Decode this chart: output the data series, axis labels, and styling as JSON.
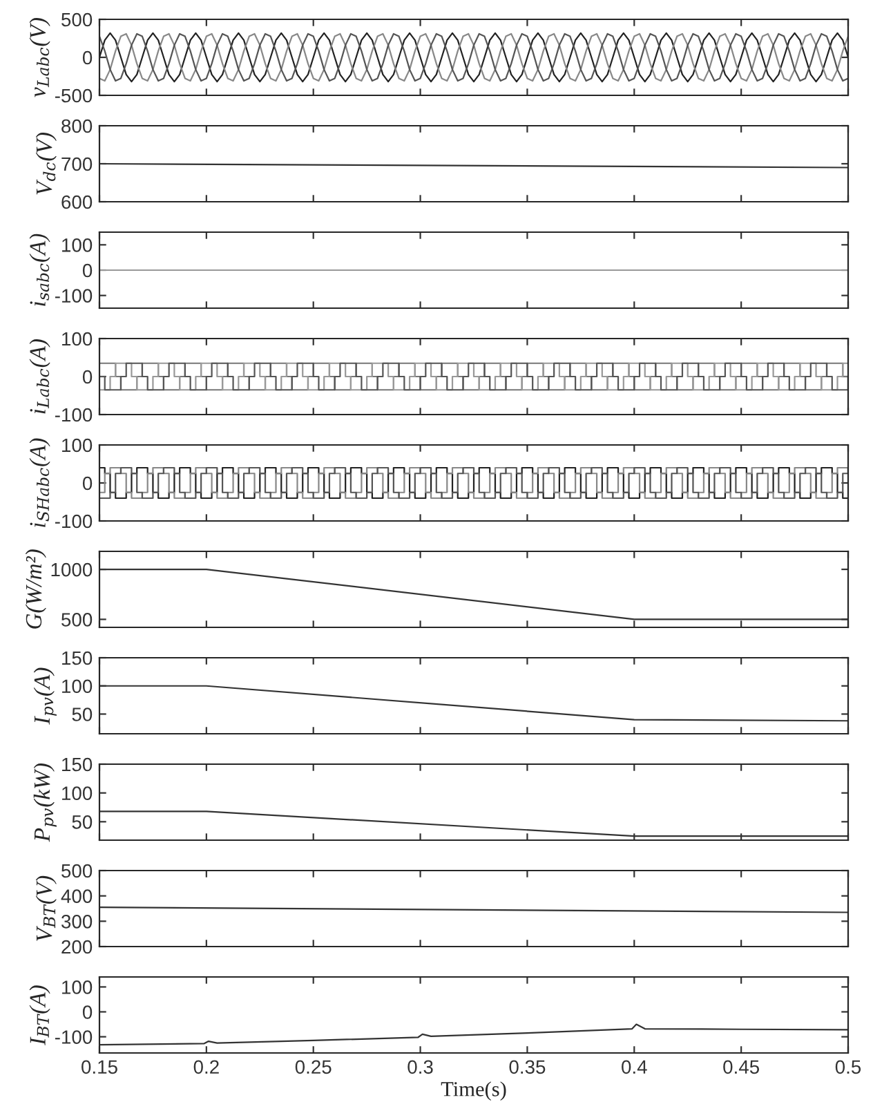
{
  "chart_data": [
    {
      "type": "line",
      "ylabel": "v$_{Labc}$(V)",
      "tick_labels": "y",
      "xlim": [
        0.15,
        0.5
      ],
      "xticks": [
        0.15,
        0.2,
        0.25,
        0.3,
        0.35,
        0.4,
        0.45,
        0.5
      ],
      "ylim": [
        -500,
        500
      ],
      "yticks": [
        -500,
        0,
        500
      ],
      "x": [
        0.15,
        0.1525,
        0.155,
        0.1575,
        0.16,
        0.1625,
        0.165,
        0.1675,
        0.17,
        0.1725,
        0.175,
        0.1775,
        0.18,
        0.1825,
        0.185,
        0.1875,
        0.19,
        0.1925,
        0.195,
        0.1975,
        0.2,
        0.2025,
        0.205,
        0.2075,
        0.21,
        0.2125,
        0.215,
        0.2175,
        0.22,
        0.2225,
        0.225,
        0.2275,
        0.23,
        0.2325,
        0.235,
        0.2375,
        0.24,
        0.2425,
        0.245,
        0.2475,
        0.25,
        0.2525,
        0.255,
        0.2575,
        0.26,
        0.2625,
        0.265,
        0.2675,
        0.27,
        0.2725,
        0.275,
        0.2775,
        0.28,
        0.2825,
        0.285,
        0.2875,
        0.29,
        0.2925,
        0.295,
        0.2975,
        0.3,
        0.3025,
        0.305,
        0.3075,
        0.31,
        0.3125,
        0.315,
        0.3175,
        0.32,
        0.3225,
        0.325,
        0.3275,
        0.33,
        0.3325,
        0.335,
        0.3375,
        0.34,
        0.3425,
        0.345,
        0.3475,
        0.35,
        0.3525,
        0.355,
        0.3575,
        0.36,
        0.3625,
        0.365,
        0.3675,
        0.37,
        0.3725,
        0.375,
        0.3775,
        0.38,
        0.3825,
        0.385,
        0.3875,
        0.39,
        0.3925,
        0.395,
        0.3975,
        0.4,
        0.4025,
        0.405,
        0.4075,
        0.41,
        0.4125,
        0.415,
        0.4175,
        0.42,
        0.4225,
        0.425,
        0.4275,
        0.43,
        0.4325,
        0.435,
        0.4375,
        0.44,
        0.4425,
        0.445,
        0.4475,
        0.45,
        0.4525,
        0.455,
        0.4575,
        0.46,
        0.4625,
        0.465,
        0.4675,
        0.47,
        0.4725,
        0.475,
        0.4775,
        0.48,
        0.4825,
        0.485,
        0.4875,
        0.49,
        0.4925,
        0.495,
        0.4975,
        0.5
      ],
      "series": [
        {
          "color": "#222222",
          "values": [
            0,
            226,
            320,
            226,
            0,
            -226,
            -320,
            -226,
            0,
            226,
            320,
            226,
            0,
            -226,
            -320,
            -226,
            0,
            226,
            320,
            226,
            0,
            -226,
            -320,
            -226,
            0,
            226,
            320,
            226,
            0,
            -226,
            -320,
            -226,
            0,
            226,
            320,
            226,
            0,
            -226,
            -320,
            -226,
            0,
            226,
            320,
            226,
            0,
            -226,
            -320,
            -226,
            0,
            226,
            320,
            226,
            0,
            -226,
            -320,
            -226,
            0,
            226,
            320,
            226,
            0,
            -226,
            -320,
            -226,
            0,
            226,
            320,
            226,
            0,
            -226,
            -320,
            -226,
            0,
            226,
            320,
            226,
            0,
            -226,
            -320,
            -226,
            0,
            226,
            320,
            226,
            0,
            -226,
            -320,
            -226,
            0,
            226,
            320,
            226,
            0,
            -226,
            -320,
            -226,
            0,
            226,
            320,
            226,
            0,
            -226,
            -320,
            -226,
            0,
            226,
            320,
            226,
            0,
            -226,
            -320,
            -226,
            0,
            226,
            320,
            226,
            0,
            -226,
            -320,
            -226,
            0,
            226,
            320,
            226,
            0,
            -226,
            -320,
            -226,
            0,
            226,
            320,
            226,
            0,
            -226,
            -320,
            -226,
            0,
            226,
            320,
            226,
            0
          ]
        },
        {
          "color": "#888888",
          "values": [
            -277,
            -309,
            -160,
            83,
            277,
            309,
            160,
            -83,
            -277,
            -309,
            -160,
            83,
            277,
            309,
            160,
            -83,
            -277,
            -309,
            -160,
            83,
            277,
            309,
            160,
            -83,
            -277,
            -309,
            -160,
            83,
            277,
            309,
            160,
            -83,
            -277,
            -309,
            -160,
            83,
            277,
            309,
            160,
            -83,
            -277,
            -309,
            -160,
            83,
            277,
            309,
            160,
            -83,
            -277,
            -309,
            -160,
            83,
            277,
            309,
            160,
            -83,
            -277,
            -309,
            -160,
            83,
            277,
            309,
            160,
            -83,
            -277,
            -309,
            -160,
            83,
            277,
            309,
            160,
            -83,
            -277,
            -309,
            -160,
            83,
            277,
            309,
            160,
            -83,
            -277,
            -309,
            -160,
            83,
            277,
            309,
            160,
            -83,
            -277,
            -309,
            -160,
            83,
            277,
            309,
            160,
            -83,
            -277,
            -309,
            -160,
            83,
            277,
            309,
            160,
            -83,
            -277,
            -309,
            -160,
            83,
            277,
            309,
            160,
            -83,
            -277,
            -309,
            -160,
            83,
            277,
            309,
            160,
            -83,
            -277,
            -309,
            -160,
            83,
            277,
            309,
            160,
            -83,
            -277,
            -309,
            -160,
            83,
            277,
            309,
            160,
            -83,
            -277,
            -309,
            -160,
            83,
            277
          ]
        },
        {
          "color": "#555555",
          "values": [
            277,
            83,
            -160,
            -309,
            -277,
            -83,
            160,
            309,
            277,
            83,
            -160,
            -309,
            -277,
            -83,
            160,
            309,
            277,
            83,
            -160,
            -309,
            -277,
            -83,
            160,
            309,
            277,
            83,
            -160,
            -309,
            -277,
            -83,
            160,
            309,
            277,
            83,
            -160,
            -309,
            -277,
            -83,
            160,
            309,
            277,
            83,
            -160,
            -309,
            -277,
            -83,
            160,
            309,
            277,
            83,
            -160,
            -309,
            -277,
            -83,
            160,
            309,
            277,
            83,
            -160,
            -309,
            -277,
            -83,
            160,
            309,
            277,
            83,
            -160,
            -309,
            -277,
            -83,
            160,
            309,
            277,
            83,
            -160,
            -309,
            -277,
            -83,
            160,
            309,
            277,
            83,
            -160,
            -309,
            -277,
            -83,
            160,
            309,
            277,
            83,
            -160,
            -309,
            -277,
            -83,
            160,
            309,
            277,
            83,
            -160,
            -309,
            -277,
            -83,
            160,
            309,
            277,
            83,
            -160,
            -309,
            -277,
            -83,
            160,
            309,
            277,
            83,
            -160,
            -309,
            -277,
            -83,
            160,
            309,
            277,
            83,
            -160,
            -309,
            -277,
            -83,
            160,
            309,
            277,
            83,
            -160,
            -309,
            -277,
            -83,
            160,
            309,
            277,
            83,
            -160,
            -309,
            -277
          ]
        }
      ]
    },
    {
      "type": "line",
      "ylabel": "V$_{dc}$(V)",
      "tick_labels": "y",
      "xlim": [
        0.15,
        0.5
      ],
      "xticks": [
        0.15,
        0.2,
        0.25,
        0.3,
        0.35,
        0.4,
        0.45,
        0.5
      ],
      "ylim": [
        600,
        800
      ],
      "yticks": [
        600,
        700,
        800
      ],
      "x": [
        0.15,
        0.5
      ],
      "series": [
        {
          "color": "#333333",
          "values": [
            700,
            690
          ]
        }
      ]
    },
    {
      "type": "line",
      "ylabel": "i$_{sabc}$(A)",
      "tick_labels": "y",
      "xlim": [
        0.15,
        0.5
      ],
      "xticks": [
        0.15,
        0.2,
        0.25,
        0.3,
        0.35,
        0.4,
        0.45,
        0.5
      ],
      "ylim": [
        -150,
        150
      ],
      "yticks": [
        -100,
        0,
        100
      ],
      "x": [
        0.15,
        0.5
      ],
      "series": [
        {
          "color": "#999999",
          "values": [
            0,
            0
          ]
        }
      ]
    },
    {
      "type": "step",
      "ylabel": "i$_{Labc}$(A)",
      "tick_labels": "y",
      "xlim": [
        0.15,
        0.5
      ],
      "xticks": [
        0.15,
        0.2,
        0.25,
        0.3,
        0.35,
        0.4,
        0.45,
        0.5
      ],
      "ylim": [
        -100,
        100
      ],
      "yticks": [
        -100,
        0,
        100
      ],
      "x": [
        0.15,
        0.1525,
        0.155,
        0.1575,
        0.16,
        0.1625,
        0.165,
        0.1675,
        0.17,
        0.1725,
        0.175,
        0.1775,
        0.18,
        0.1825,
        0.185,
        0.1875,
        0.19,
        0.1925,
        0.195,
        0.1975,
        0.2,
        0.2025,
        0.205,
        0.2075,
        0.21,
        0.2125,
        0.215,
        0.2175,
        0.22,
        0.2225,
        0.225,
        0.2275,
        0.23,
        0.2325,
        0.235,
        0.2375,
        0.24,
        0.2425,
        0.245,
        0.2475,
        0.25,
        0.2525,
        0.255,
        0.2575,
        0.26,
        0.2625,
        0.265,
        0.2675,
        0.27,
        0.2725,
        0.275,
        0.2775,
        0.28,
        0.2825,
        0.285,
        0.2875,
        0.29,
        0.2925,
        0.295,
        0.2975,
        0.3,
        0.3025,
        0.305,
        0.3075,
        0.31,
        0.3125,
        0.315,
        0.3175,
        0.32,
        0.3225,
        0.325,
        0.3275,
        0.33,
        0.3325,
        0.335,
        0.3375,
        0.34,
        0.3425,
        0.345,
        0.3475,
        0.35,
        0.3525,
        0.355,
        0.3575,
        0.36,
        0.3625,
        0.365,
        0.3675,
        0.37,
        0.3725,
        0.375,
        0.3775,
        0.38,
        0.3825,
        0.385,
        0.3875,
        0.39,
        0.3925,
        0.395,
        0.3975,
        0.4,
        0.4025,
        0.405,
        0.4075,
        0.41,
        0.4125,
        0.415,
        0.4175,
        0.42,
        0.4225,
        0.425,
        0.4275,
        0.43,
        0.4325,
        0.435,
        0.4375,
        0.44,
        0.4425,
        0.445,
        0.4475,
        0.45,
        0.4525,
        0.455,
        0.4575,
        0.46,
        0.4625,
        0.465,
        0.4675,
        0.47,
        0.4725,
        0.475,
        0.4775,
        0.48,
        0.4825,
        0.485,
        0.4875,
        0.49,
        0.4925,
        0.495,
        0.4975,
        0.5
      ],
      "series": [
        {
          "color": "#777777",
          "values": [
            35,
            35,
            35,
            0,
            -35,
            -35,
            -35,
            0,
            35,
            35,
            35,
            0,
            -35,
            -35,
            -35,
            0,
            35,
            35,
            35,
            0,
            -35,
            -35,
            -35,
            0,
            35,
            35,
            35,
            0,
            -35,
            -35,
            -35,
            0,
            35,
            35,
            35,
            0,
            -35,
            -35,
            -35,
            0,
            35,
            35,
            35,
            0,
            -35,
            -35,
            -35,
            0,
            35,
            35,
            35,
            0,
            -35,
            -35,
            -35,
            0,
            35,
            35,
            35,
            0,
            -35,
            -35,
            -35,
            0,
            35,
            35,
            35,
            0,
            -35,
            -35,
            -35,
            0,
            35,
            35,
            35,
            0,
            -35,
            -35,
            -35,
            0,
            35,
            35,
            35,
            0,
            -35,
            -35,
            -35,
            0,
            35,
            35,
            35,
            0,
            -35,
            -35,
            -35,
            0,
            35,
            35,
            35,
            0,
            -35,
            -35,
            -35,
            0,
            35,
            35,
            35,
            0,
            -35,
            -35,
            -35,
            0,
            35,
            35,
            35,
            0,
            -35,
            -35,
            -35,
            0,
            35,
            35,
            35,
            0,
            -35,
            -35,
            -35,
            0,
            35,
            35,
            35,
            0,
            -35,
            -35,
            -35,
            0,
            35,
            35,
            35,
            0,
            -35
          ]
        },
        {
          "color": "#999999",
          "values": [
            -35,
            -35,
            0,
            35,
            35,
            35,
            0,
            -35,
            -35,
            -35,
            0,
            35,
            35,
            35,
            0,
            -35,
            -35,
            -35,
            0,
            35,
            35,
            35,
            0,
            -35,
            -35,
            -35,
            0,
            35,
            35,
            35,
            0,
            -35,
            -35,
            -35,
            0,
            35,
            35,
            35,
            0,
            -35,
            -35,
            -35,
            0,
            35,
            35,
            35,
            0,
            -35,
            -35,
            -35,
            0,
            35,
            35,
            35,
            0,
            -35,
            -35,
            -35,
            0,
            35,
            35,
            35,
            0,
            -35,
            -35,
            -35,
            0,
            35,
            35,
            35,
            0,
            -35,
            -35,
            -35,
            0,
            35,
            35,
            35,
            0,
            -35,
            -35,
            -35,
            0,
            35,
            35,
            35,
            0,
            -35,
            -35,
            -35,
            0,
            35,
            35,
            35,
            0,
            -35,
            -35,
            -35,
            0,
            35,
            35,
            35,
            0,
            -35,
            -35,
            -35,
            0,
            35,
            35,
            35,
            0,
            -35,
            -35,
            -35,
            0,
            35,
            35,
            35,
            0,
            -35,
            -35,
            -35,
            0,
            35,
            35,
            35,
            0,
            -35,
            -35,
            -35,
            0,
            35,
            35,
            35,
            0,
            -35,
            -35,
            -35,
            0,
            35,
            35
          ]
        },
        {
          "color": "#555555",
          "values": [
            0,
            -35,
            -35,
            -35,
            0,
            35,
            35,
            35,
            0,
            -35,
            -35,
            -35,
            0,
            35,
            35,
            35,
            0,
            -35,
            -35,
            -35,
            0,
            35,
            35,
            35,
            0,
            -35,
            -35,
            -35,
            0,
            35,
            35,
            35,
            0,
            -35,
            -35,
            -35,
            0,
            35,
            35,
            35,
            0,
            -35,
            -35,
            -35,
            0,
            35,
            35,
            35,
            0,
            -35,
            -35,
            -35,
            0,
            35,
            35,
            35,
            0,
            -35,
            -35,
            -35,
            0,
            35,
            35,
            35,
            0,
            -35,
            -35,
            -35,
            0,
            35,
            35,
            35,
            0,
            -35,
            -35,
            -35,
            0,
            35,
            35,
            35,
            0,
            -35,
            -35,
            -35,
            0,
            35,
            35,
            35,
            0,
            -35,
            -35,
            -35,
            0,
            35,
            35,
            35,
            0,
            -35,
            -35,
            -35,
            0,
            35,
            35,
            35,
            0,
            -35,
            -35,
            -35,
            0,
            35,
            35,
            35,
            0,
            -35,
            -35,
            -35,
            0,
            35,
            35,
            35,
            0,
            -35,
            -35,
            -35,
            0,
            35,
            35,
            35,
            0,
            -35,
            -35,
            -35,
            0,
            35,
            35,
            35,
            0,
            -35,
            -35,
            -35,
            0
          ]
        }
      ]
    },
    {
      "type": "step",
      "ylabel": "i$_{SHabc}$(A)",
      "tick_labels": "y",
      "xlim": [
        0.15,
        0.5
      ],
      "xticks": [
        0.15,
        0.2,
        0.25,
        0.3,
        0.35,
        0.4,
        0.45,
        0.5
      ],
      "ylim": [
        -100,
        100
      ],
      "yticks": [
        -100,
        0,
        100
      ],
      "x": [
        0.15,
        0.1525,
        0.155,
        0.1575,
        0.16,
        0.1625,
        0.165,
        0.1675,
        0.17,
        0.1725,
        0.175,
        0.1775,
        0.18,
        0.1825,
        0.185,
        0.1875,
        0.19,
        0.1925,
        0.195,
        0.1975,
        0.2,
        0.2025,
        0.205,
        0.2075,
        0.21,
        0.2125,
        0.215,
        0.2175,
        0.22,
        0.2225,
        0.225,
        0.2275,
        0.23,
        0.2325,
        0.235,
        0.2375,
        0.24,
        0.2425,
        0.245,
        0.2475,
        0.25,
        0.2525,
        0.255,
        0.2575,
        0.26,
        0.2625,
        0.265,
        0.2675,
        0.27,
        0.2725,
        0.275,
        0.2775,
        0.28,
        0.2825,
        0.285,
        0.2875,
        0.29,
        0.2925,
        0.295,
        0.2975,
        0.3,
        0.3025,
        0.305,
        0.3075,
        0.31,
        0.3125,
        0.315,
        0.3175,
        0.32,
        0.3225,
        0.325,
        0.3275,
        0.33,
        0.3325,
        0.335,
        0.3375,
        0.34,
        0.3425,
        0.345,
        0.3475,
        0.35,
        0.3525,
        0.355,
        0.3575,
        0.36,
        0.3625,
        0.365,
        0.3675,
        0.37,
        0.3725,
        0.375,
        0.3775,
        0.38,
        0.3825,
        0.385,
        0.3875,
        0.39,
        0.3925,
        0.395,
        0.3975,
        0.4,
        0.4025,
        0.405,
        0.4075,
        0.41,
        0.4125,
        0.415,
        0.4175,
        0.42,
        0.4225,
        0.425,
        0.4275,
        0.43,
        0.4325,
        0.435,
        0.4375,
        0.44,
        0.4425,
        0.445,
        0.4475,
        0.45,
        0.4525,
        0.455,
        0.4575,
        0.46,
        0.4625,
        0.465,
        0.4675,
        0.47,
        0.4725,
        0.475,
        0.4775,
        0.48,
        0.4825,
        0.485,
        0.4875,
        0.49,
        0.4925,
        0.495,
        0.4975,
        0.5
      ],
      "series": [
        {
          "color": "#222222",
          "values": [
            40,
            25,
            -25,
            -40,
            -40,
            -25,
            25,
            40,
            40,
            25,
            -25,
            -40,
            -40,
            -25,
            25,
            40,
            40,
            25,
            -25,
            -40,
            -40,
            -25,
            25,
            40,
            40,
            25,
            -25,
            -40,
            -40,
            -25,
            25,
            40,
            40,
            25,
            -25,
            -40,
            -40,
            -25,
            25,
            40,
            40,
            25,
            -25,
            -40,
            -40,
            -25,
            25,
            40,
            40,
            25,
            -25,
            -40,
            -40,
            -25,
            25,
            40,
            40,
            25,
            -25,
            -40,
            -40,
            -25,
            25,
            40,
            40,
            25,
            -25,
            -40,
            -40,
            -25,
            25,
            40,
            40,
            25,
            -25,
            -40,
            -40,
            -25,
            25,
            40,
            40,
            25,
            -25,
            -40,
            -40,
            -25,
            25,
            40,
            40,
            25,
            -25,
            -40,
            -40,
            -25,
            25,
            40,
            40,
            25,
            -25,
            -40,
            -40,
            -25,
            25,
            40,
            40,
            25,
            -25,
            -40,
            -40,
            -25,
            25,
            40,
            40,
            25,
            -25,
            -40,
            -40,
            -25,
            25,
            40,
            40,
            25,
            -25,
            -40,
            -40,
            -25,
            25,
            40,
            40,
            25,
            -25,
            -40,
            -40,
            -25,
            25,
            40,
            40,
            25,
            -25,
            -40,
            -40
          ]
        },
        {
          "color": "#888888",
          "values": [
            -25,
            25,
            40,
            40,
            25,
            -25,
            -40,
            -40,
            -25,
            25,
            40,
            40,
            25,
            -25,
            -40,
            -40,
            -25,
            25,
            40,
            40,
            25,
            -25,
            -40,
            -40,
            -25,
            25,
            40,
            40,
            25,
            -25,
            -40,
            -40,
            -25,
            25,
            40,
            40,
            25,
            -25,
            -40,
            -40,
            -25,
            25,
            40,
            40,
            25,
            -25,
            -40,
            -40,
            -25,
            25,
            40,
            40,
            25,
            -25,
            -40,
            -40,
            -25,
            25,
            40,
            40,
            25,
            -25,
            -40,
            -40,
            -25,
            25,
            40,
            40,
            25,
            -25,
            -40,
            -40,
            -25,
            25,
            40,
            40,
            25,
            -25,
            -40,
            -40,
            -25,
            25,
            40,
            40,
            25,
            -25,
            -40,
            -40,
            -25,
            25,
            40,
            40,
            25,
            -25,
            -40,
            -40,
            -25,
            25,
            40,
            40,
            25,
            -25,
            -40,
            -40,
            -25,
            25,
            40,
            40,
            25,
            -25,
            -40,
            -40,
            -25,
            25,
            40,
            40,
            25,
            -25,
            -40,
            -40,
            -25,
            25,
            40,
            40,
            25,
            -25,
            -40,
            -40,
            -25,
            25,
            40,
            40,
            25,
            -25,
            -40,
            -40,
            -25,
            25,
            40,
            40,
            25
          ]
        },
        {
          "color": "#555555",
          "values": [
            -40,
            -40,
            -25,
            25,
            40,
            40,
            25,
            -25,
            -40,
            -40,
            -25,
            25,
            40,
            40,
            25,
            -25,
            -40,
            -40,
            -25,
            25,
            40,
            40,
            25,
            -25,
            -40,
            -40,
            -25,
            25,
            40,
            40,
            25,
            -25,
            -40,
            -40,
            -25,
            25,
            40,
            40,
            25,
            -25,
            -40,
            -40,
            -25,
            25,
            40,
            40,
            25,
            -25,
            -40,
            -40,
            -25,
            25,
            40,
            40,
            25,
            -25,
            -40,
            -40,
            -25,
            25,
            40,
            40,
            25,
            -25,
            -40,
            -40,
            -25,
            25,
            40,
            40,
            25,
            -25,
            -40,
            -40,
            -25,
            25,
            40,
            40,
            25,
            -25,
            -40,
            -40,
            -25,
            25,
            40,
            40,
            25,
            -25,
            -40,
            -40,
            -25,
            25,
            40,
            40,
            25,
            -25,
            -40,
            -40,
            -25,
            25,
            40,
            40,
            25,
            -25,
            -40,
            -40,
            -25,
            25,
            40,
            40,
            25,
            -25,
            -40,
            -40,
            -25,
            25,
            40,
            40,
            25,
            -25,
            -40,
            -40,
            -25,
            25,
            40,
            40,
            25,
            -25,
            -40,
            -40,
            -25,
            25,
            40,
            40,
            25,
            -25,
            -40,
            -40,
            -25,
            25,
            40
          ]
        }
      ]
    },
    {
      "type": "line",
      "ylabel": "G(W/m²)",
      "tick_labels": "y",
      "xlim": [
        0.15,
        0.5
      ],
      "xticks": [
        0.15,
        0.2,
        0.25,
        0.3,
        0.35,
        0.4,
        0.45,
        0.5
      ],
      "ylim": [
        420,
        1180
      ],
      "yticks": [
        500,
        1000
      ],
      "x": [
        0.15,
        0.2,
        0.4,
        0.5
      ],
      "series": [
        {
          "color": "#333333",
          "values": [
            1000,
            1000,
            500,
            500
          ]
        }
      ]
    },
    {
      "type": "line",
      "ylabel": "I$_{pv}$(A)",
      "tick_labels": "y",
      "xlim": [
        0.15,
        0.5
      ],
      "xticks": [
        0.15,
        0.2,
        0.25,
        0.3,
        0.35,
        0.4,
        0.45,
        0.5
      ],
      "ylim": [
        15,
        150
      ],
      "yticks": [
        50,
        100,
        150
      ],
      "x": [
        0.15,
        0.2,
        0.4,
        0.5
      ],
      "series": [
        {
          "color": "#333333",
          "values": [
            100,
            100,
            40,
            38
          ]
        }
      ]
    },
    {
      "type": "line",
      "ylabel": "P$_{pv}$(kW)",
      "tick_labels": "y",
      "xlim": [
        0.15,
        0.5
      ],
      "xticks": [
        0.15,
        0.2,
        0.25,
        0.3,
        0.35,
        0.4,
        0.45,
        0.5
      ],
      "ylim": [
        18,
        150
      ],
      "yticks": [
        50,
        100,
        150
      ],
      "x": [
        0.15,
        0.2,
        0.4,
        0.5
      ],
      "series": [
        {
          "color": "#333333",
          "values": [
            68,
            68,
            25,
            25
          ]
        }
      ]
    },
    {
      "type": "line",
      "ylabel": "V$_{BT}$(V)",
      "tick_labels": "y",
      "xlim": [
        0.15,
        0.5
      ],
      "xticks": [
        0.15,
        0.2,
        0.25,
        0.3,
        0.35,
        0.4,
        0.45,
        0.5
      ],
      "ylim": [
        200,
        500
      ],
      "yticks": [
        200,
        300,
        400,
        500
      ],
      "x": [
        0.15,
        0.5
      ],
      "series": [
        {
          "color": "#333333",
          "values": [
            355,
            335
          ]
        }
      ]
    },
    {
      "type": "line",
      "ylabel": "I$_{BT}$(A)",
      "xlabel": "Time(s)",
      "xlim": [
        0.15,
        0.5
      ],
      "xticks": [
        0.15,
        0.2,
        0.25,
        0.3,
        0.35,
        0.4,
        0.45,
        0.5
      ],
      "ylim": [
        -165,
        140
      ],
      "yticks": [
        -100,
        0,
        100
      ],
      "x": [
        0.15,
        0.199,
        0.201,
        0.205,
        0.25,
        0.299,
        0.301,
        0.305,
        0.35,
        0.399,
        0.401,
        0.405,
        0.45,
        0.5
      ],
      "series": [
        {
          "color": "#333333",
          "values": [
            -132,
            -127,
            -118,
            -125,
            -115,
            -102,
            -90,
            -98,
            -85,
            -68,
            -50,
            -68,
            -70,
            -72
          ]
        }
      ]
    }
  ]
}
